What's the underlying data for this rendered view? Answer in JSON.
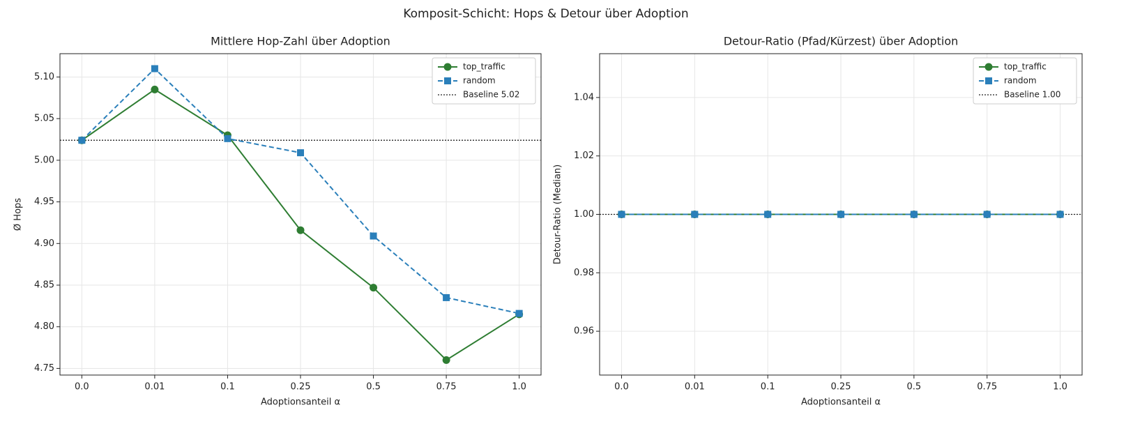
{
  "title": "Komposit-Schicht: Hops & Detour über Adoption",
  "chart_data": [
    {
      "type": "line",
      "title": "Mittlere Hop-Zahl über Adoption",
      "x_label": "Adoptionsanteil α",
      "y_label": "Ø Hops",
      "categories": [
        "0.0",
        "0.01",
        "0.1",
        "0.25",
        "0.5",
        "0.75",
        "1.0"
      ],
      "series": [
        {
          "name": "top_traffic",
          "color": "#2e7d32",
          "marker": "circle",
          "linestyle": "solid",
          "values": [
            5.024,
            5.085,
            5.03,
            4.916,
            4.847,
            4.76,
            4.815
          ]
        },
        {
          "name": "random",
          "color": "#2a7fba",
          "marker": "square",
          "linestyle": "dashed",
          "values": [
            5.024,
            5.11,
            5.026,
            5.009,
            4.909,
            4.835,
            4.816
          ]
        }
      ],
      "baseline": {
        "value": 5.024,
        "label": "Baseline 5.02",
        "color": "#222222"
      },
      "ylim": [
        4.742,
        5.128
      ],
      "yticks": [
        {
          "value": 4.75,
          "label": "4.75"
        },
        {
          "value": 4.8,
          "label": "4.80"
        },
        4.85,
        {
          "value": 4.9,
          "label": "4.90"
        },
        4.95,
        {
          "value": 5.0,
          "label": "5.00"
        },
        5.05,
        {
          "value": 5.1,
          "label": "5.10"
        }
      ],
      "grid": true,
      "legend": "upper-right"
    },
    {
      "type": "line",
      "title": "Detour-Ratio (Pfad/Kürzest) über Adoption",
      "x_label": "Adoptionsanteil α",
      "y_label": "Detour-Ratio (Median)",
      "categories": [
        "0.0",
        "0.01",
        "0.1",
        "0.25",
        "0.5",
        "0.75",
        "1.0"
      ],
      "series": [
        {
          "name": "top_traffic",
          "color": "#2e7d32",
          "marker": "circle",
          "linestyle": "solid",
          "values": [
            1.0,
            1.0,
            1.0,
            1.0,
            1.0,
            1.0,
            1.0
          ]
        },
        {
          "name": "random",
          "color": "#2a7fba",
          "marker": "square",
          "linestyle": "dashed",
          "values": [
            1.0,
            1.0,
            1.0,
            1.0,
            1.0,
            1.0,
            1.0
          ]
        }
      ],
      "baseline": {
        "value": 1.0,
        "label": "Baseline 1.00",
        "color": "#222222"
      },
      "ylim": [
        0.945,
        1.055
      ],
      "yticks": [
        0.96,
        0.98,
        {
          "value": 1.0,
          "label": "1.00"
        },
        1.02,
        1.04
      ],
      "grid": true,
      "legend": "upper-right"
    }
  ]
}
